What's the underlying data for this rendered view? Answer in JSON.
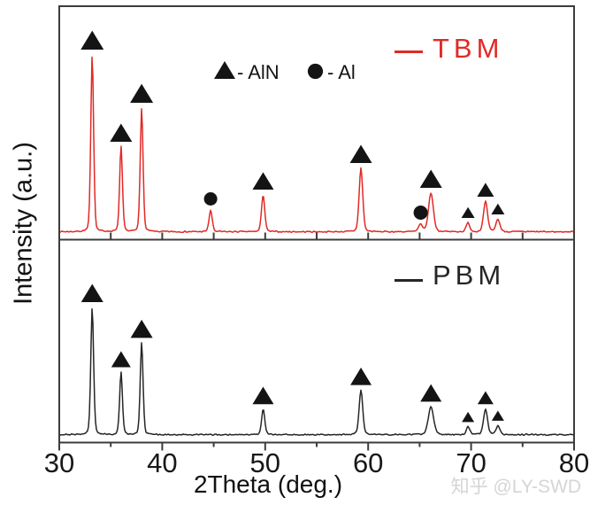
{
  "labels": {
    "xlabel": "2Theta (deg.)",
    "ylabel": "Intensity (a.u.)"
  },
  "legend": {
    "aln_label": "- AlN",
    "al_label": "- Al",
    "tbm_label": "TBM",
    "pbm_label": "PBM"
  },
  "watermark": "知乎 @LY-SWD",
  "colors": {
    "tbm_red": "#e02a26",
    "pbm_black": "#262626",
    "axis_border": "#3c3c3c",
    "marker_black": "#141414",
    "tick_label": "#181818",
    "watermark_gray": "#d5d5d5",
    "background": "#ffffff"
  },
  "chart_data": {
    "type": "line",
    "xlabel": "2Theta (deg.)",
    "ylabel": "Intensity (a.u.)",
    "xlim": [
      30,
      80
    ],
    "x_major_ticks": [
      30,
      40,
      50,
      60,
      70,
      80
    ],
    "x_minor_ticks": [
      35,
      45,
      55,
      65,
      75
    ],
    "y_axis": "arbitrary units (no ticks, no labels)",
    "grid": false,
    "marker_legend": [
      {
        "marker": "triangle",
        "phase": "AlN"
      },
      {
        "marker": "circle",
        "phase": "Al"
      }
    ],
    "panels": [
      {
        "name": "TBM",
        "color": "#e02a26",
        "legend_position": "top-right",
        "peaks": [
          {
            "two_theta": 33.2,
            "rel_intensity": 100,
            "phase": "AlN",
            "marker": "triangle",
            "marker_size": 26,
            "sigma": 0.14
          },
          {
            "two_theta": 36.0,
            "rel_intensity": 48,
            "phase": "AlN",
            "marker": "triangle",
            "marker_size": 25,
            "sigma": 0.14
          },
          {
            "two_theta": 38.0,
            "rel_intensity": 70,
            "phase": "AlN",
            "marker": "triangle",
            "marker_size": 26,
            "sigma": 0.14
          },
          {
            "two_theta": 44.7,
            "rel_intensity": 12,
            "phase": "Al",
            "marker": "circle",
            "marker_size": 15,
            "sigma": 0.16
          },
          {
            "two_theta": 49.8,
            "rel_intensity": 21,
            "phase": "AlN",
            "marker": "triangle",
            "marker_size": 24,
            "sigma": 0.16
          },
          {
            "two_theta": 59.3,
            "rel_intensity": 36,
            "phase": "AlN",
            "marker": "triangle",
            "marker_size": 25,
            "sigma": 0.18
          },
          {
            "two_theta": 65.1,
            "rel_intensity": 4,
            "phase": "Al",
            "marker": "circle",
            "marker_size": 16,
            "sigma": 0.2
          },
          {
            "two_theta": 66.1,
            "rel_intensity": 22,
            "phase": "AlN",
            "marker": "triangle",
            "marker_size": 25,
            "sigma": 0.24
          },
          {
            "two_theta": 69.7,
            "rel_intensity": 5,
            "phase": "AlN",
            "marker": "triangle",
            "marker_size": 15,
            "sigma": 0.18
          },
          {
            "two_theta": 71.4,
            "rel_intensity": 17,
            "phase": "AlN",
            "marker": "triangle",
            "marker_size": 19,
            "sigma": 0.2
          },
          {
            "two_theta": 72.6,
            "rel_intensity": 7,
            "phase": "AlN",
            "marker": "triangle",
            "marker_size": 15,
            "sigma": 0.2
          }
        ]
      },
      {
        "name": "PBM",
        "color": "#262626",
        "legend_position": "top-right",
        "peaks": [
          {
            "two_theta": 33.2,
            "rel_intensity": 100,
            "phase": "AlN",
            "marker": "triangle",
            "marker_size": 25,
            "sigma": 0.14
          },
          {
            "two_theta": 36.0,
            "rel_intensity": 49,
            "phase": "AlN",
            "marker": "triangle",
            "marker_size": 22,
            "sigma": 0.14
          },
          {
            "two_theta": 38.0,
            "rel_intensity": 72,
            "phase": "AlN",
            "marker": "triangle",
            "marker_size": 25,
            "sigma": 0.14
          },
          {
            "two_theta": 49.8,
            "rel_intensity": 20,
            "phase": "AlN",
            "marker": "triangle",
            "marker_size": 24,
            "sigma": 0.16
          },
          {
            "two_theta": 59.3,
            "rel_intensity": 35,
            "phase": "AlN",
            "marker": "triangle",
            "marker_size": 24,
            "sigma": 0.18
          },
          {
            "two_theta": 66.1,
            "rel_intensity": 22,
            "phase": "AlN",
            "marker": "triangle",
            "marker_size": 24,
            "sigma": 0.26
          },
          {
            "two_theta": 69.7,
            "rel_intensity": 6,
            "phase": "AlN",
            "marker": "triangle",
            "marker_size": 14,
            "sigma": 0.18
          },
          {
            "two_theta": 71.4,
            "rel_intensity": 20,
            "phase": "AlN",
            "marker": "triangle",
            "marker_size": 18,
            "sigma": 0.2
          },
          {
            "two_theta": 72.6,
            "rel_intensity": 7,
            "phase": "AlN",
            "marker": "triangle",
            "marker_size": 14,
            "sigma": 0.2
          }
        ]
      }
    ]
  }
}
